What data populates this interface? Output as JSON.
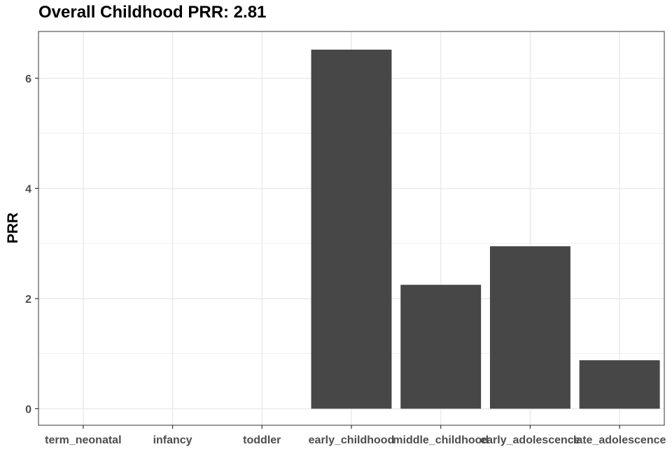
{
  "chart_data": {
    "type": "bar",
    "title": "Overall Childhood PRR: 2.81",
    "xlabel": "",
    "ylabel": "PRR",
    "categories": [
      "term_neonatal",
      "infancy",
      "toddler",
      "early_childhood",
      "middle_childhood",
      "early_adolescence",
      "late_adolescence"
    ],
    "values": [
      0,
      0,
      0,
      6.52,
      2.25,
      2.95,
      0.88
    ],
    "ylim": [
      -0.3,
      6.85
    ],
    "yticks": [
      0,
      2,
      4,
      6
    ],
    "grid": true,
    "bar_color": "#474747",
    "grid_color": "#ebebeb",
    "panel_border_color": "#333333",
    "tick_label_color": "#4d4d4d"
  }
}
